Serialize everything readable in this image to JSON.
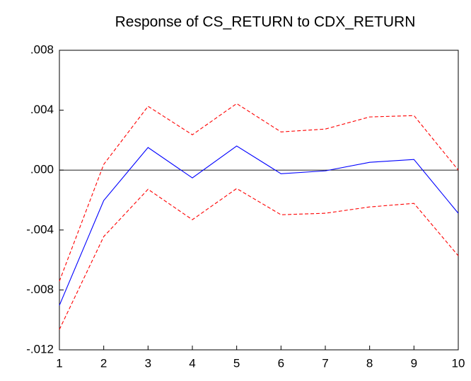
{
  "chart_data": {
    "type": "line",
    "title": "Response of CS_RETURN to CDX_RETURN",
    "x": [
      1,
      2,
      3,
      4,
      5,
      6,
      7,
      8,
      9,
      10
    ],
    "xlim": [
      1,
      10
    ],
    "xticks": [
      1,
      2,
      3,
      4,
      5,
      6,
      7,
      8,
      9,
      10
    ],
    "ylim": [
      -0.012,
      0.008
    ],
    "yticks": [
      {
        "value": -0.012,
        "label": "-.012"
      },
      {
        "value": -0.008,
        "label": "-.008"
      },
      {
        "value": -0.004,
        "label": "-.004"
      },
      {
        "value": 0,
        "label": ".000"
      },
      {
        "value": 0.004,
        "label": ".004"
      },
      {
        "value": 0.008,
        "label": ".008"
      }
    ],
    "zero_line": true,
    "series": [
      {
        "color": "#0000ff",
        "dashed": false,
        "values": [
          -0.00903,
          -0.00203,
          0.00151,
          -0.00052,
          0.00161,
          -0.00024,
          -5e-05,
          0.00052,
          0.00071,
          -0.00288
        ]
      },
      {
        "color": "#ff0000",
        "dashed": true,
        "values": [
          -0.00742,
          0.00038,
          0.00426,
          0.00236,
          0.00444,
          0.00255,
          0.00274,
          0.00355,
          0.00364,
          0.0
        ]
      },
      {
        "color": "#ff0000",
        "dashed": true,
        "values": [
          -0.01064,
          -0.00444,
          -0.00128,
          -0.00331,
          -0.00123,
          -0.00298,
          -0.00288,
          -0.00246,
          -0.00222,
          -0.00572
        ]
      }
    ]
  }
}
